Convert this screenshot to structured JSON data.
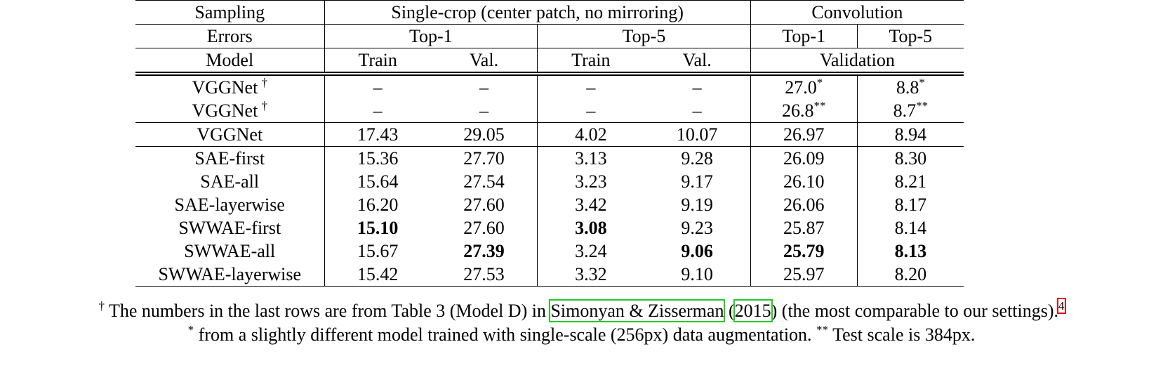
{
  "header": {
    "rows": [
      [
        {
          "text": "Sampling",
          "span": 1
        },
        {
          "text": "Single-crop (center patch, no mirroring)",
          "span": 4
        },
        {
          "text": "Convolution",
          "span": 2
        }
      ],
      [
        {
          "text": "Errors",
          "span": 1
        },
        {
          "text": "Top-1",
          "span": 2
        },
        {
          "text": "Top-5",
          "span": 2
        },
        {
          "text": "Top-1",
          "span": 1
        },
        {
          "text": "Top-5",
          "span": 1
        }
      ],
      [
        {
          "text": "Model",
          "span": 1
        },
        {
          "text": "Train",
          "span": 1
        },
        {
          "text": "Val.",
          "span": 1
        },
        {
          "text": "Train",
          "span": 1
        },
        {
          "text": "Val.",
          "span": 1
        },
        {
          "text": "Validation",
          "span": 2
        }
      ]
    ]
  },
  "body": {
    "groups": [
      [
        {
          "model": {
            "text": "VGGNet",
            "sup": "†"
          },
          "cells": [
            {
              "text": "–"
            },
            {
              "text": "–"
            },
            {
              "text": "–"
            },
            {
              "text": "–"
            },
            {
              "text": "27.0",
              "sup": "*"
            },
            {
              "text": "8.8",
              "sup": "*"
            }
          ]
        },
        {
          "model": {
            "text": "VGGNet",
            "sup": "†"
          },
          "cells": [
            {
              "text": "–"
            },
            {
              "text": "–"
            },
            {
              "text": "–"
            },
            {
              "text": "–"
            },
            {
              "text": "26.8",
              "sup": "**"
            },
            {
              "text": "8.7",
              "sup": "**"
            }
          ]
        }
      ],
      [
        {
          "model": {
            "text": "VGGNet"
          },
          "cells": [
            {
              "text": "17.43"
            },
            {
              "text": "29.05"
            },
            {
              "text": "4.02"
            },
            {
              "text": "10.07"
            },
            {
              "text": "26.97"
            },
            {
              "text": "8.94"
            }
          ]
        }
      ],
      [
        {
          "model": {
            "text": "SAE-first"
          },
          "cells": [
            {
              "text": "15.36"
            },
            {
              "text": "27.70"
            },
            {
              "text": "3.13"
            },
            {
              "text": "9.28"
            },
            {
              "text": "26.09"
            },
            {
              "text": "8.30"
            }
          ]
        },
        {
          "model": {
            "text": "SAE-all"
          },
          "cells": [
            {
              "text": "15.64"
            },
            {
              "text": "27.54"
            },
            {
              "text": "3.23"
            },
            {
              "text": "9.17"
            },
            {
              "text": "26.10"
            },
            {
              "text": "8.21"
            }
          ]
        },
        {
          "model": {
            "text": "SAE-layerwise"
          },
          "cells": [
            {
              "text": "16.20"
            },
            {
              "text": "27.60"
            },
            {
              "text": "3.42"
            },
            {
              "text": "9.19"
            },
            {
              "text": "26.06"
            },
            {
              "text": "8.17"
            }
          ]
        },
        {
          "model": {
            "text": "SWWAE-first"
          },
          "cells": [
            {
              "text": "15.10",
              "bold": true
            },
            {
              "text": "27.60"
            },
            {
              "text": "3.08",
              "bold": true
            },
            {
              "text": "9.23"
            },
            {
              "text": "25.87"
            },
            {
              "text": "8.14"
            }
          ]
        },
        {
          "model": {
            "text": "SWWAE-all"
          },
          "cells": [
            {
              "text": "15.67"
            },
            {
              "text": "27.39",
              "bold": true
            },
            {
              "text": "3.24"
            },
            {
              "text": "9.06",
              "bold": true
            },
            {
              "text": "25.79",
              "bold": true
            },
            {
              "text": "8.13",
              "bold": true
            }
          ]
        },
        {
          "model": {
            "text": "SWWAE-layerwise"
          },
          "cells": [
            {
              "text": "15.42"
            },
            {
              "text": "27.53"
            },
            {
              "text": "3.32"
            },
            {
              "text": "9.10"
            },
            {
              "text": "25.97"
            },
            {
              "text": "8.20"
            }
          ]
        }
      ]
    ]
  },
  "footnotes": {
    "line1": {
      "mark": "†",
      "before": " The numbers in the last rows are from Table 3 (Model D) in ",
      "ref": "Simonyan & Zisserman",
      "mid": " (",
      "year": "2015",
      "after": ") (the most comparable to our settings).",
      "note": "4"
    },
    "line2": {
      "mark1": "*",
      "text1": " from a slightly different model trained with single-scale (256px) data augmentation. ",
      "mark2": "**",
      "text2": " Test scale is 384px."
    }
  }
}
